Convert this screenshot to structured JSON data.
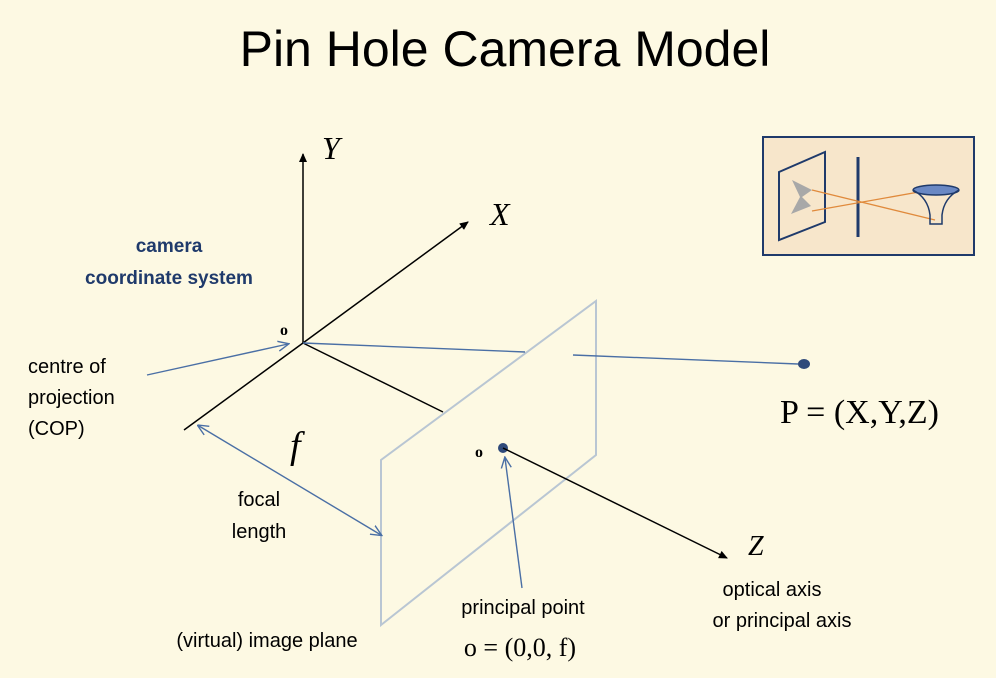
{
  "title": "Pin Hole Camera Model",
  "axes": {
    "y": "Y",
    "x": "X",
    "z": "Z"
  },
  "labels": {
    "camera_coord_line1": "camera",
    "camera_coord_line2": "coordinate system",
    "origin": "o",
    "cop_line1": "centre of",
    "cop_line2": "projection",
    "cop_line3": "(COP)",
    "focal_symbol": "f",
    "focal_line1": "focal",
    "focal_line2": "length",
    "image_plane": "(virtual) image plane",
    "principal_point_origin": "o",
    "principal_point": "principal point",
    "principal_point_eq": "o = (0,0, f)",
    "optical_axis_line1": "optical axis",
    "optical_axis_line2": "or principal axis",
    "point_eq": "P = (X,Y,Z)"
  },
  "colors": {
    "background": "#fdf9e3",
    "axis": "#000000",
    "annotation": "#4a6fa5",
    "plane": "#b9c6d3",
    "point": "#2f4a7a",
    "heading": "#1f3a6b",
    "inset_bg": "#f7e6cb",
    "inset_border": "#1f3a6b",
    "inset_ray": "#e08a3c"
  }
}
